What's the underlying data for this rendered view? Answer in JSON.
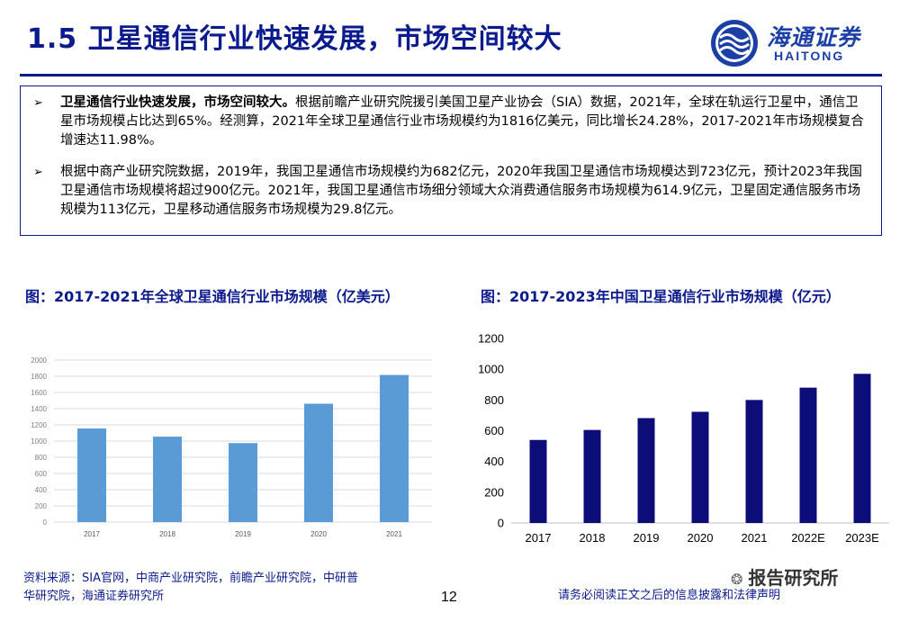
{
  "header": {
    "title": "1.5 卫星通信行业快速发展，市场空间较大",
    "logo_cn": "海通证券",
    "logo_en": "HAITONG"
  },
  "summary": {
    "bullets": [
      {
        "bold": "卫星通信行业快速发展，市场空间较大。",
        "text": "根据前瞻产业研究院援引美国卫星产业协会（SIA）数据，2021年，全球在轨运行卫星中，通信卫星市场规模占比达到65%。经测算，2021年全球卫星通信行业市场规模约为1816亿美元，同比增长24.28%，2017-2021年市场规模复合增速达11.98%。"
      },
      {
        "bold": "",
        "text": "根据中商产业研究院数据，2019年，我国卫星通信市场规模约为682亿元，2020年我国卫星通信市场规模达到723亿元，预计2023年我国卫星通信市场规模将超过900亿元。2021年，我国卫星通信市场细分领域大众消费通信服务市场规模为614.9亿元，卫星固定通信服务市场规模为113亿元，卫星移动通信服务市场规模为29.8亿元。"
      }
    ]
  },
  "figures": {
    "left_title": "图：2017-2021年全球卫星通信行业市场规模（亿美元）",
    "right_title": "图：2017-2023年中国卫星通信行业市场规模（亿元）"
  },
  "chart_data": [
    {
      "type": "bar",
      "categories": [
        "2017",
        "2018",
        "2019",
        "2020",
        "2021"
      ],
      "values": [
        1155,
        1055,
        975,
        1461,
        1816
      ],
      "ylim": [
        0,
        2000
      ],
      "yticks": [
        "0",
        "200",
        "400",
        "600",
        "800",
        "1000",
        "1200",
        "1400",
        "1600",
        "1800",
        "2000"
      ],
      "grid": true,
      "color": "#5b9bd5",
      "title": "",
      "xlabel": "",
      "ylabel": ""
    },
    {
      "type": "bar",
      "categories": [
        "2017",
        "2018",
        "2019",
        "2020",
        "2021",
        "2022E",
        "2023E"
      ],
      "values": [
        540,
        605,
        682,
        723,
        800,
        880,
        970
      ],
      "ylim": [
        0,
        1200
      ],
      "yticks": [
        "0",
        "200",
        "400",
        "600",
        "800",
        "1000",
        "1200"
      ],
      "grid": false,
      "color": "#0d0d7a",
      "title": "",
      "xlabel": "",
      "ylabel": ""
    }
  ],
  "footer": {
    "source_line1": "资料来源：SIA官网，中商产业研究院，前瞻产业研究院，中研普",
    "source_line2": "华研究院，海通证券研究所",
    "page_number": "12",
    "disclaimer": "请务必阅读正文之后的信息披露和法律声明",
    "watermark": "报告研究所"
  }
}
